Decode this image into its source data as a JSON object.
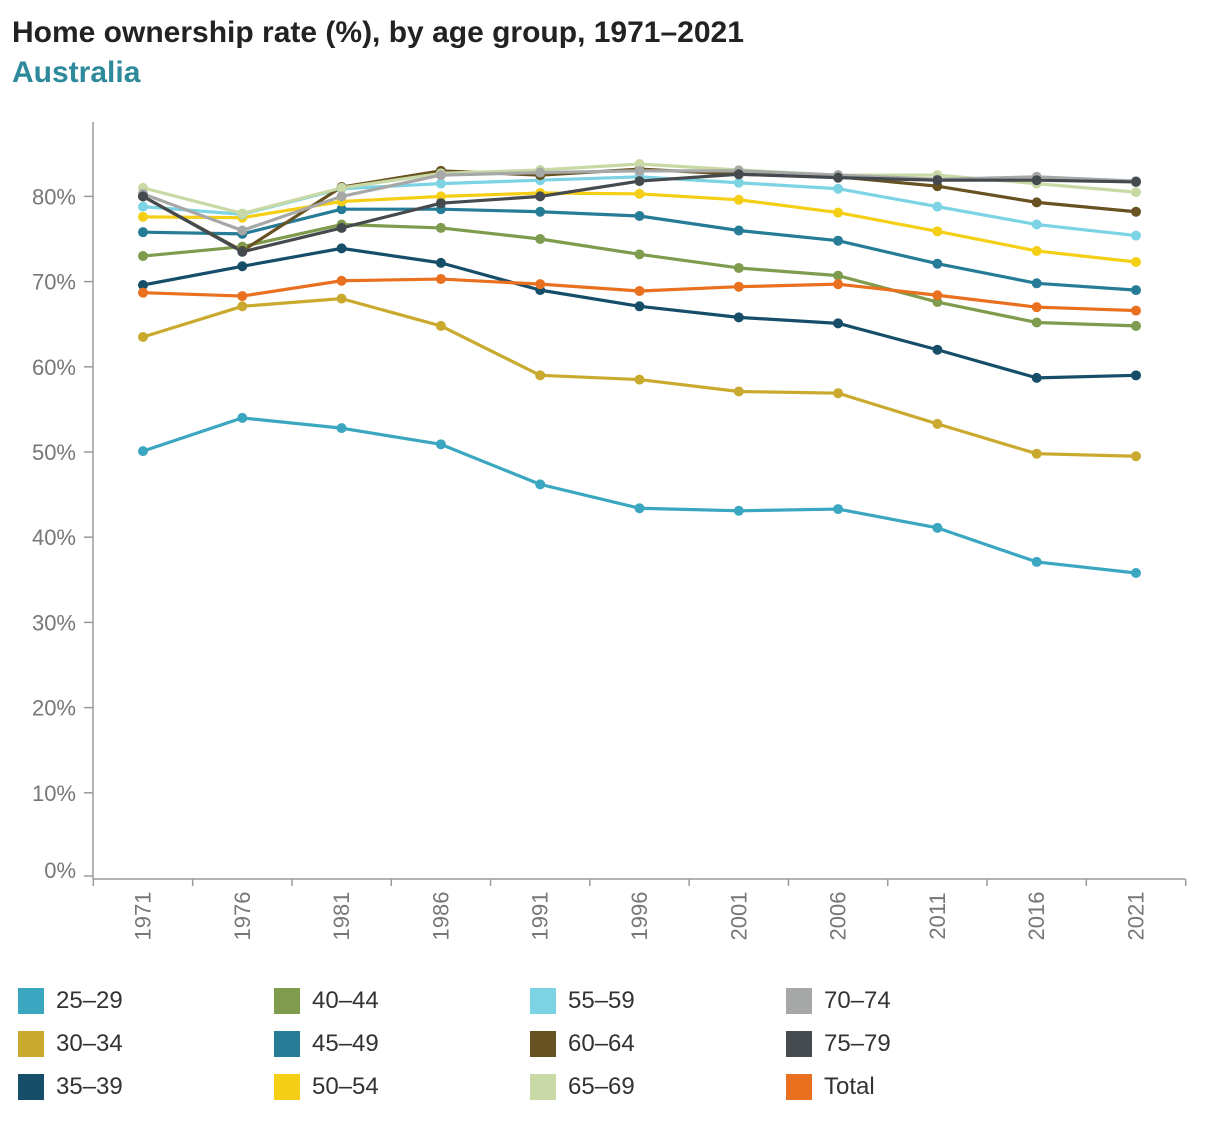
{
  "header": {
    "title": "Home ownership rate (%), by age group, 1971–2021",
    "subtitle": "Australia"
  },
  "chart_data": {
    "type": "line",
    "title": "Home ownership rate (%), by age group, 1971–2021",
    "subtitle": "Australia",
    "xlabel": "",
    "ylabel": "",
    "categories": [
      "1971",
      "1976",
      "1981",
      "1986",
      "1991",
      "1996",
      "2001",
      "2006",
      "2011",
      "2016",
      "2021"
    ],
    "y_ticks": [
      "0%",
      "10%",
      "20%",
      "30%",
      "40%",
      "50%",
      "60%",
      "70%",
      "80%"
    ],
    "ylim": [
      0,
      85
    ],
    "grid": false,
    "legend_position": "bottom",
    "series": [
      {
        "name": "25–29",
        "color": "#3aa6c0",
        "values": [
          50.1,
          54.0,
          52.8,
          50.9,
          46.2,
          43.4,
          43.1,
          43.3,
          41.1,
          37.1,
          35.8
        ]
      },
      {
        "name": "30–34",
        "color": "#c9aa2e",
        "values": [
          63.5,
          67.1,
          68.0,
          64.8,
          59.0,
          58.5,
          57.1,
          56.9,
          53.3,
          49.8,
          49.5
        ]
      },
      {
        "name": "35–39",
        "color": "#164e6a",
        "values": [
          69.6,
          71.8,
          73.9,
          72.2,
          69.0,
          67.1,
          65.8,
          65.1,
          62.0,
          58.7,
          59.0
        ]
      },
      {
        "name": "40–44",
        "color": "#7f9c4e",
        "values": [
          73.0,
          74.1,
          76.7,
          76.3,
          75.0,
          73.2,
          71.6,
          70.7,
          67.6,
          65.2,
          64.8
        ]
      },
      {
        "name": "45–49",
        "color": "#267c96",
        "values": [
          75.8,
          75.6,
          78.5,
          78.5,
          78.2,
          77.7,
          76.0,
          74.8,
          72.1,
          69.8,
          69.0
        ]
      },
      {
        "name": "50–54",
        "color": "#f4cf15",
        "values": [
          77.6,
          77.5,
          79.4,
          80.0,
          80.4,
          80.3,
          79.6,
          78.1,
          75.9,
          73.6,
          72.3
        ]
      },
      {
        "name": "55–59",
        "color": "#7cd3e3",
        "values": [
          78.8,
          77.9,
          80.9,
          81.5,
          81.9,
          82.3,
          81.6,
          80.9,
          78.8,
          76.7,
          75.4
        ]
      },
      {
        "name": "60–64",
        "color": "#685222",
        "values": [
          80.0,
          73.6,
          81.1,
          83.0,
          82.5,
          83.2,
          82.6,
          82.3,
          81.2,
          79.3,
          78.2
        ]
      },
      {
        "name": "65–69",
        "color": "#c9d9a5",
        "values": [
          81.0,
          78.0,
          81.0,
          82.7,
          83.1,
          83.8,
          83.1,
          82.5,
          82.5,
          81.5,
          80.5
        ]
      },
      {
        "name": "70–74",
        "color": "#a5a8a7",
        "values": [
          80.3,
          76.0,
          80.0,
          82.5,
          82.8,
          83.0,
          83.0,
          82.5,
          82.0,
          82.3,
          81.8
        ]
      },
      {
        "name": "75–79",
        "color": "#454a4e",
        "values": [
          80.0,
          73.5,
          76.3,
          79.2,
          80.0,
          81.8,
          82.6,
          82.2,
          81.9,
          81.9,
          81.7
        ]
      },
      {
        "name": "Total",
        "color": "#e8701f",
        "values": [
          68.7,
          68.3,
          70.1,
          70.3,
          69.7,
          68.9,
          69.4,
          69.7,
          68.4,
          67.0,
          66.6
        ]
      }
    ]
  }
}
